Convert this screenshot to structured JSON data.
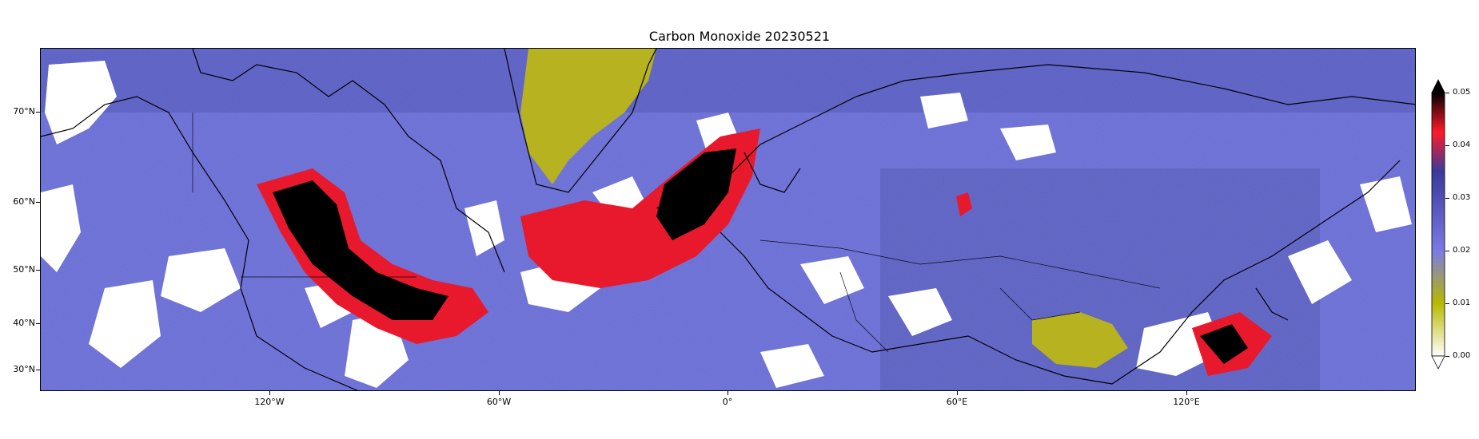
{
  "title": "Carbon Monoxide 20230521",
  "map": {
    "lon_range": [
      -180,
      180
    ],
    "lat_range": [
      26,
      79
    ],
    "lat_labels": [
      {
        "lat": 70,
        "text": "70°N"
      },
      {
        "lat": 60,
        "text": "60°N"
      },
      {
        "lat": 50,
        "text": "50°N"
      },
      {
        "lat": 40,
        "text": "40°N"
      },
      {
        "lat": 30,
        "text": "30°N"
      }
    ],
    "lon_labels": [
      {
        "lon": -120,
        "text": "120°W"
      },
      {
        "lon": -60,
        "text": "60°W"
      },
      {
        "lon": 0,
        "text": "0°"
      },
      {
        "lon": 60,
        "text": "60°E"
      },
      {
        "lon": 120,
        "text": "120°E"
      }
    ]
  },
  "colorbar": {
    "min": 0.0,
    "max": 0.05,
    "ticks": [
      "0.00",
      "0.01",
      "0.02",
      "0.03",
      "0.04",
      "0.05"
    ],
    "colors": [
      "#ffffff",
      "#b8b800",
      "#7a7ae6",
      "#3a3a9a",
      "#ff1a2a",
      "#000000"
    ],
    "extend": "both"
  },
  "colors": {
    "background_low": "#6b6fd8",
    "cloud_gap": "#ffffff",
    "greenland_low": "#b7b21f",
    "fire_plume_red": "#e8192c",
    "fire_plume_core": "#000000",
    "coastline": "#000000"
  }
}
